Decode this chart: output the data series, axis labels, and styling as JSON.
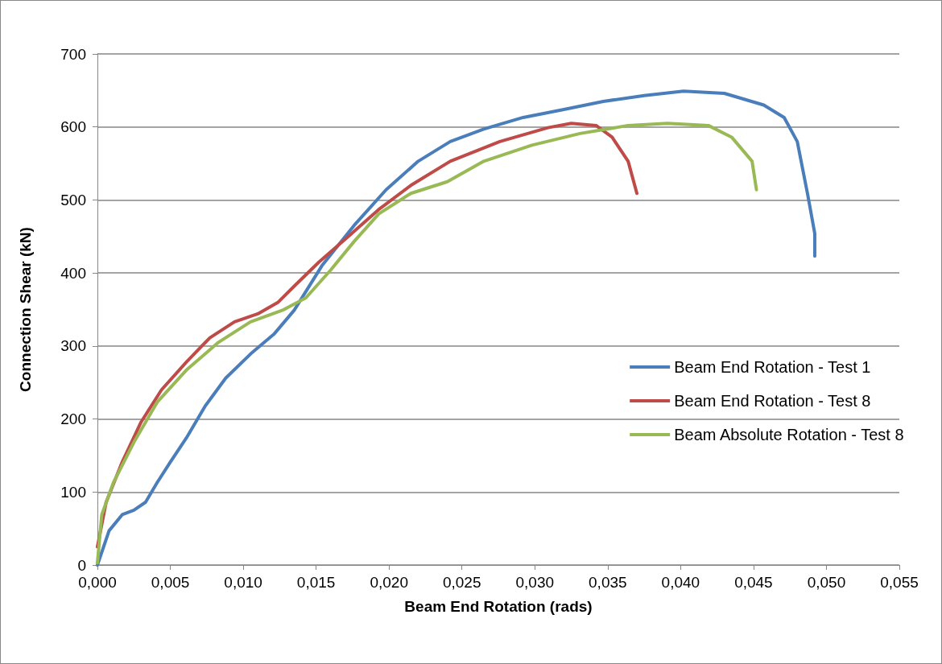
{
  "chart_data": {
    "type": "line",
    "xlabel": "Beam End Rotation (rads)",
    "ylabel": "Connection Shear (kN)",
    "xlim": [
      0,
      0.055
    ],
    "xticks": [
      {
        "value": 0,
        "label": "0,000"
      },
      {
        "value": 0.005,
        "label": "0,005"
      },
      {
        "value": 0.01,
        "label": "0,010"
      },
      {
        "value": 0.015,
        "label": "0,015"
      },
      {
        "value": 0.02,
        "label": "0,020"
      },
      {
        "value": 0.025,
        "label": "0,025"
      },
      {
        "value": 0.03,
        "label": "0,030"
      },
      {
        "value": 0.035,
        "label": "0,035"
      },
      {
        "value": 0.04,
        "label": "0,040"
      },
      {
        "value": 0.045,
        "label": "0,045"
      },
      {
        "value": 0.05,
        "label": "0,050"
      },
      {
        "value": 0.055,
        "label": "0,055"
      }
    ],
    "ylim": [
      0,
      700
    ],
    "yticks": [
      0,
      100,
      200,
      300,
      400,
      500,
      600,
      700
    ],
    "grid": "y",
    "legend": "right",
    "marker": "none",
    "line_style": "solid",
    "series": [
      {
        "name": "Beam End Rotation - Test 1",
        "color": "#4a7ebb",
        "x": [
          0,
          0.0008,
          0.0017,
          0.0025,
          0.0033,
          0.0041,
          0.005,
          0.0061,
          0.0074,
          0.0088,
          0.0105,
          0.0121,
          0.0135,
          0.0154,
          0.0176,
          0.0198,
          0.022,
          0.0242,
          0.0265,
          0.0292,
          0.032,
          0.0347,
          0.0375,
          0.0402,
          0.043,
          0.0457,
          0.0471,
          0.048,
          0.0487,
          0.0492,
          0.0492
        ],
        "values": [
          0,
          47,
          69,
          75,
          86,
          113,
          141,
          174,
          218,
          256,
          289,
          316,
          349,
          410,
          465,
          514,
          553,
          580,
          597,
          613,
          624,
          635,
          643,
          649,
          646,
          630,
          613,
          580,
          509,
          454,
          423
        ]
      },
      {
        "name": "Beam End Rotation - Test 8",
        "color": "#be4b48",
        "x": [
          0,
          0.0006,
          0.0017,
          0.003,
          0.0044,
          0.0061,
          0.0077,
          0.0094,
          0.011,
          0.0124,
          0.0135,
          0.0152,
          0.0171,
          0.0193,
          0.0215,
          0.0242,
          0.0276,
          0.0309,
          0.0325,
          0.0342,
          0.0353,
          0.0364,
          0.037
        ],
        "values": [
          25,
          86,
          141,
          196,
          240,
          278,
          311,
          333,
          344,
          360,
          382,
          415,
          448,
          487,
          520,
          553,
          580,
          599,
          605,
          602,
          586,
          553,
          509
        ]
      },
      {
        "name": "Beam Absolute Rotation - Test 8",
        "color": "#98b954",
        "x": [
          0,
          0.0003,
          0.0011,
          0.0025,
          0.0041,
          0.0061,
          0.0083,
          0.0105,
          0.0127,
          0.0143,
          0.016,
          0.0176,
          0.0193,
          0.0215,
          0.024,
          0.0265,
          0.0298,
          0.0331,
          0.0364,
          0.0391,
          0.0419,
          0.0435,
          0.0449,
          0.0452
        ],
        "values": [
          3,
          69,
          113,
          168,
          223,
          267,
          305,
          333,
          349,
          366,
          404,
          443,
          481,
          509,
          525,
          553,
          575,
          591,
          602,
          605,
          602,
          586,
          553,
          514
        ]
      }
    ]
  }
}
